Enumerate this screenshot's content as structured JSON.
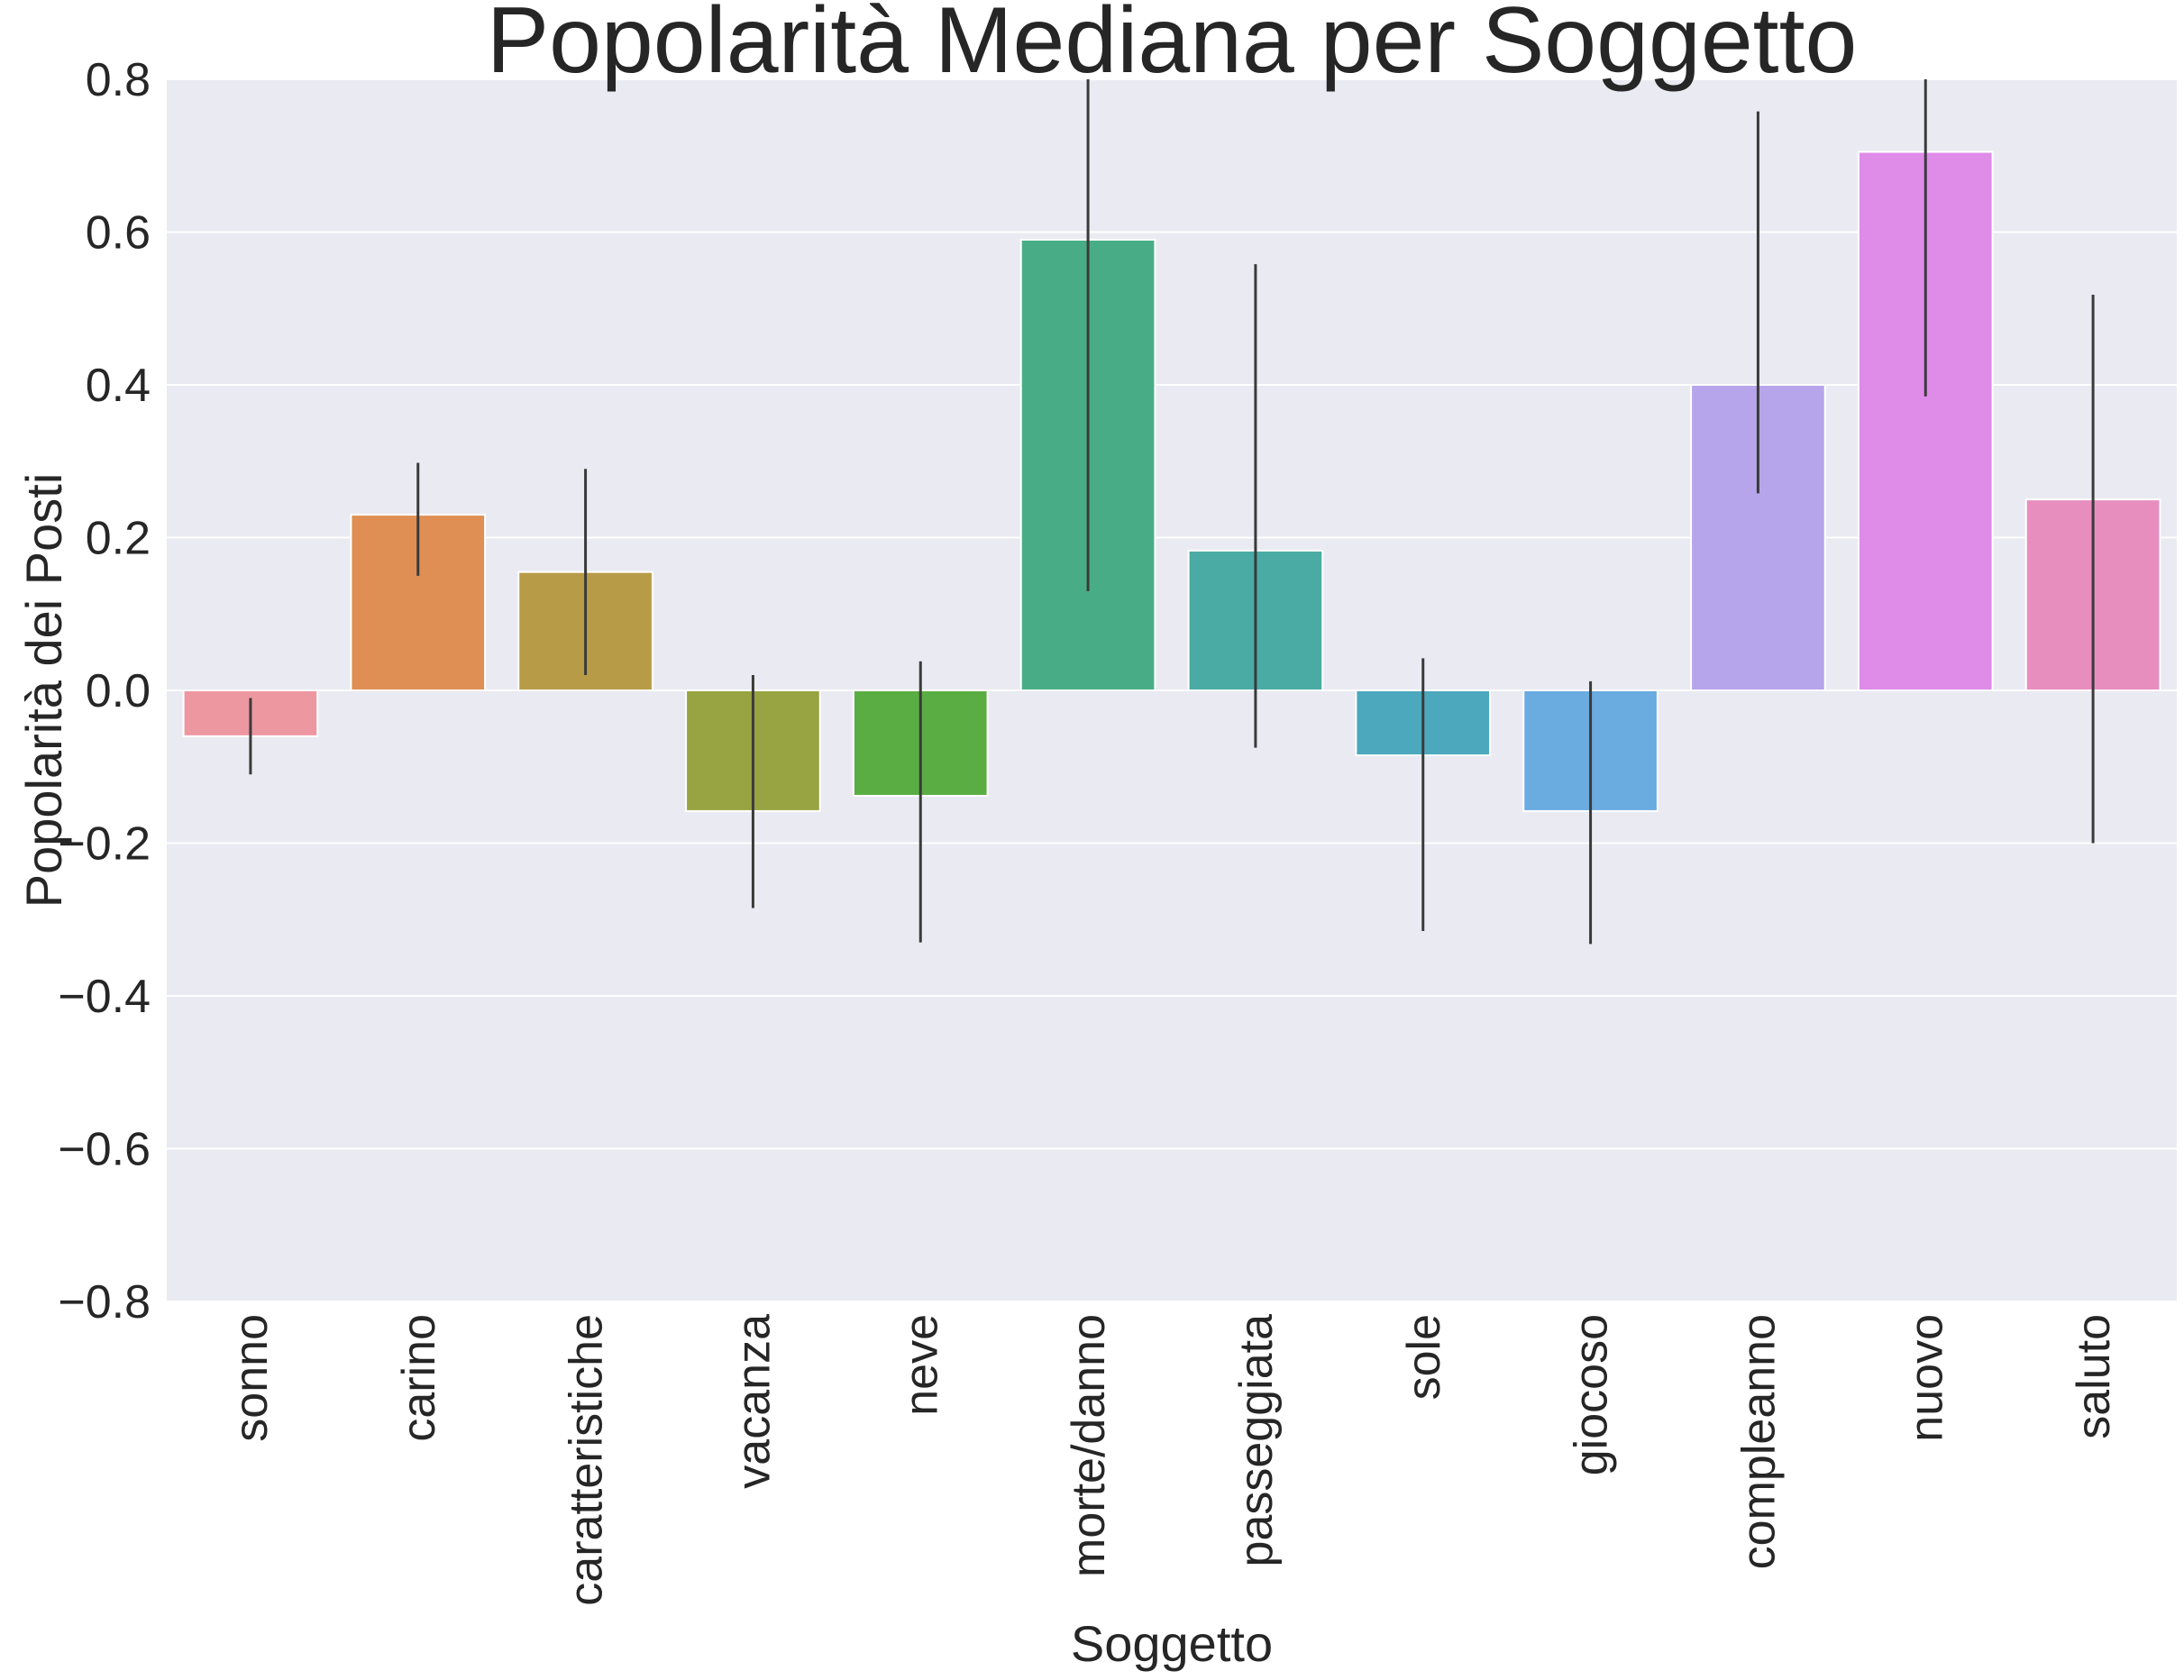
{
  "chart_data": {
    "type": "bar",
    "title": "Popolarità Mediana per Soggetto",
    "xlabel": "Soggetto",
    "ylabel": "Popolarità dei Posti",
    "ylim": [
      -0.8,
      0.8
    ],
    "yticks": [
      -0.8,
      -0.6,
      -0.4,
      -0.2,
      0.0,
      0.2,
      0.4,
      0.6,
      0.8
    ],
    "ytick_labels": [
      "−0.8",
      "−0.6",
      "−0.4",
      "−0.2",
      "0.0",
      "0.2",
      "0.4",
      "0.6",
      "0.8"
    ],
    "grid": true,
    "categories": [
      "sonno",
      "carino",
      "caratteristiche",
      "vacanza",
      "neve",
      "morte/danno",
      "passeggiata",
      "sole",
      "giocoso",
      "compleanno",
      "nuovo",
      "saluto"
    ],
    "values": [
      -0.06,
      0.23,
      0.155,
      -0.158,
      -0.138,
      0.59,
      0.183,
      -0.085,
      -0.158,
      0.4,
      0.705,
      0.25
    ],
    "error_low": [
      -0.11,
      0.15,
      0.02,
      -0.285,
      -0.33,
      0.13,
      -0.075,
      -0.315,
      -0.332,
      0.258,
      0.385,
      -0.2
    ],
    "error_high": [
      -0.01,
      0.298,
      0.29,
      0.02,
      0.038,
      0.8,
      0.558,
      0.042,
      0.012,
      0.758,
      0.8,
      0.518
    ],
    "colors": [
      "#ed97a1",
      "#df8f53",
      "#b79b47",
      "#98a342",
      "#5aad42",
      "#48ad86",
      "#4aaba5",
      "#4ca8bc",
      "#6aabe0",
      "#b6a5ea",
      "#df8be8",
      "#e88ebf"
    ]
  }
}
